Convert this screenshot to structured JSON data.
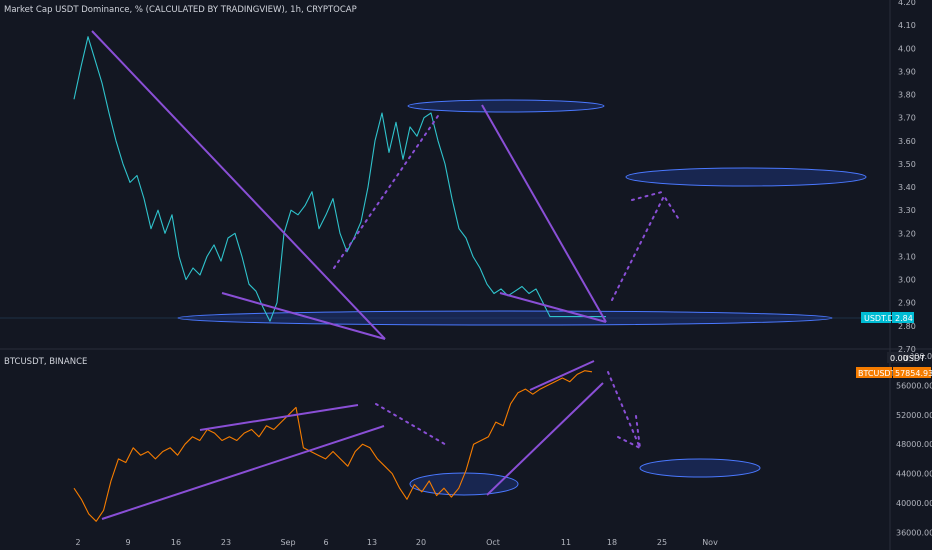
{
  "colors": {
    "background": "#131722",
    "text": "#d1d4dc",
    "usdt_line": "#2fc3cc",
    "btc_line": "#f57c00",
    "trendline": "#8a4fd6",
    "zone_fill": "#1e3a8a",
    "zone_stroke": "#4a78ff",
    "usdt_tag": "#00bcd4",
    "btc_tag": "#f57c00"
  },
  "chart_data": [
    {
      "type": "line",
      "title": "Market Cap USDT Dominance, % (CALCULATED BY TRADINGVIEW), 1h, CRYPTOCAP",
      "y_ticks": [
        "4.20",
        "4.10",
        "4.00",
        "3.90",
        "3.80",
        "3.70",
        "3.60",
        "3.50",
        "3.40",
        "3.30",
        "3.20",
        "3.10",
        "3.00",
        "2.90",
        "2.80",
        "2.70"
      ],
      "ylim": [
        2.7,
        4.2
      ],
      "price_tag": {
        "label": "USDT.D",
        "value": "2.84"
      },
      "series": [
        {
          "x": [
            0,
            1,
            2,
            3,
            4,
            5,
            6,
            7,
            8,
            9,
            10,
            11,
            12,
            13,
            14,
            15,
            16,
            17,
            18,
            19,
            20,
            21,
            22,
            23,
            24,
            25,
            26,
            27,
            28,
            29,
            30,
            31,
            32,
            33,
            34,
            35,
            36,
            37,
            38,
            39,
            40,
            41,
            42,
            43,
            44,
            45,
            46,
            47,
            48,
            49,
            50,
            51,
            52,
            53,
            54,
            55,
            56,
            57,
            58,
            59,
            60,
            61,
            62,
            63,
            64,
            65,
            66,
            67,
            68,
            69,
            70,
            71,
            72,
            73,
            74,
            75,
            76
          ],
          "values": [
            3.78,
            3.92,
            4.05,
            3.95,
            3.85,
            3.72,
            3.6,
            3.5,
            3.42,
            3.45,
            3.35,
            3.22,
            3.3,
            3.2,
            3.28,
            3.1,
            3.0,
            3.05,
            3.02,
            3.1,
            3.15,
            3.08,
            3.18,
            3.2,
            3.1,
            2.98,
            2.95,
            2.88,
            2.82,
            2.9,
            3.2,
            3.3,
            3.28,
            3.32,
            3.38,
            3.22,
            3.28,
            3.35,
            3.2,
            3.12,
            3.18,
            3.25,
            3.4,
            3.6,
            3.72,
            3.55,
            3.68,
            3.52,
            3.66,
            3.62,
            3.7,
            3.72,
            3.6,
            3.5,
            3.35,
            3.22,
            3.18,
            3.1,
            3.05,
            2.98,
            2.94,
            2.96,
            2.93,
            2.95,
            2.97,
            2.94,
            2.96,
            2.9,
            2.84,
            2.84,
            2.84,
            2.84,
            2.84,
            2.84,
            2.84,
            2.84,
            2.84
          ]
        }
      ]
    },
    {
      "type": "line",
      "title": "BTCUSDT, BINANCE",
      "y_ticks": [
        "56000.00",
        "52000.00",
        "48000.00",
        "44000.00",
        "40000.00",
        "36000.00"
      ],
      "ylim": [
        35500,
        60000
      ],
      "price_tag": {
        "label": "BTCUSDT",
        "value": "57854.93"
      },
      "top_tick": "60000.00",
      "top_tag": {
        "label": "USDT",
        "value": "0.00"
      },
      "series": [
        {
          "x": [
            0,
            1,
            2,
            3,
            4,
            5,
            6,
            7,
            8,
            9,
            10,
            11,
            12,
            13,
            14,
            15,
            16,
            17,
            18,
            19,
            20,
            21,
            22,
            23,
            24,
            25,
            26,
            27,
            28,
            29,
            30,
            31,
            32,
            33,
            34,
            35,
            36,
            37,
            38,
            39,
            40,
            41,
            42,
            43,
            44,
            45,
            46,
            47,
            48,
            49,
            50,
            51,
            52,
            53,
            54,
            55,
            56,
            57,
            58,
            59,
            60,
            61,
            62,
            63,
            64,
            65,
            66,
            67,
            68,
            69,
            70
          ],
          "values": [
            42000,
            40500,
            38500,
            37500,
            39000,
            43000,
            46000,
            45500,
            47500,
            46500,
            47000,
            46000,
            47000,
            47500,
            46500,
            48000,
            49000,
            48500,
            50000,
            49500,
            48500,
            49000,
            48500,
            49500,
            50000,
            49000,
            50500,
            50000,
            51000,
            52000,
            53000,
            47500,
            47000,
            46500,
            46000,
            47000,
            46000,
            45000,
            47000,
            48000,
            47500,
            46000,
            45000,
            44000,
            42000,
            40500,
            42500,
            41500,
            43000,
            41000,
            42000,
            40800,
            42000,
            44500,
            48000,
            48500,
            49000,
            51000,
            50500,
            53500,
            55000,
            55500,
            54800,
            55500,
            56000,
            56500,
            57000,
            56500,
            57500,
            58000,
            57855
          ]
        }
      ]
    }
  ],
  "x_axis": {
    "ticks": [
      "2",
      "9",
      "16",
      "23",
      "Sep",
      "6",
      "13",
      "20",
      "Oct",
      "11",
      "18",
      "25",
      "Nov"
    ]
  }
}
